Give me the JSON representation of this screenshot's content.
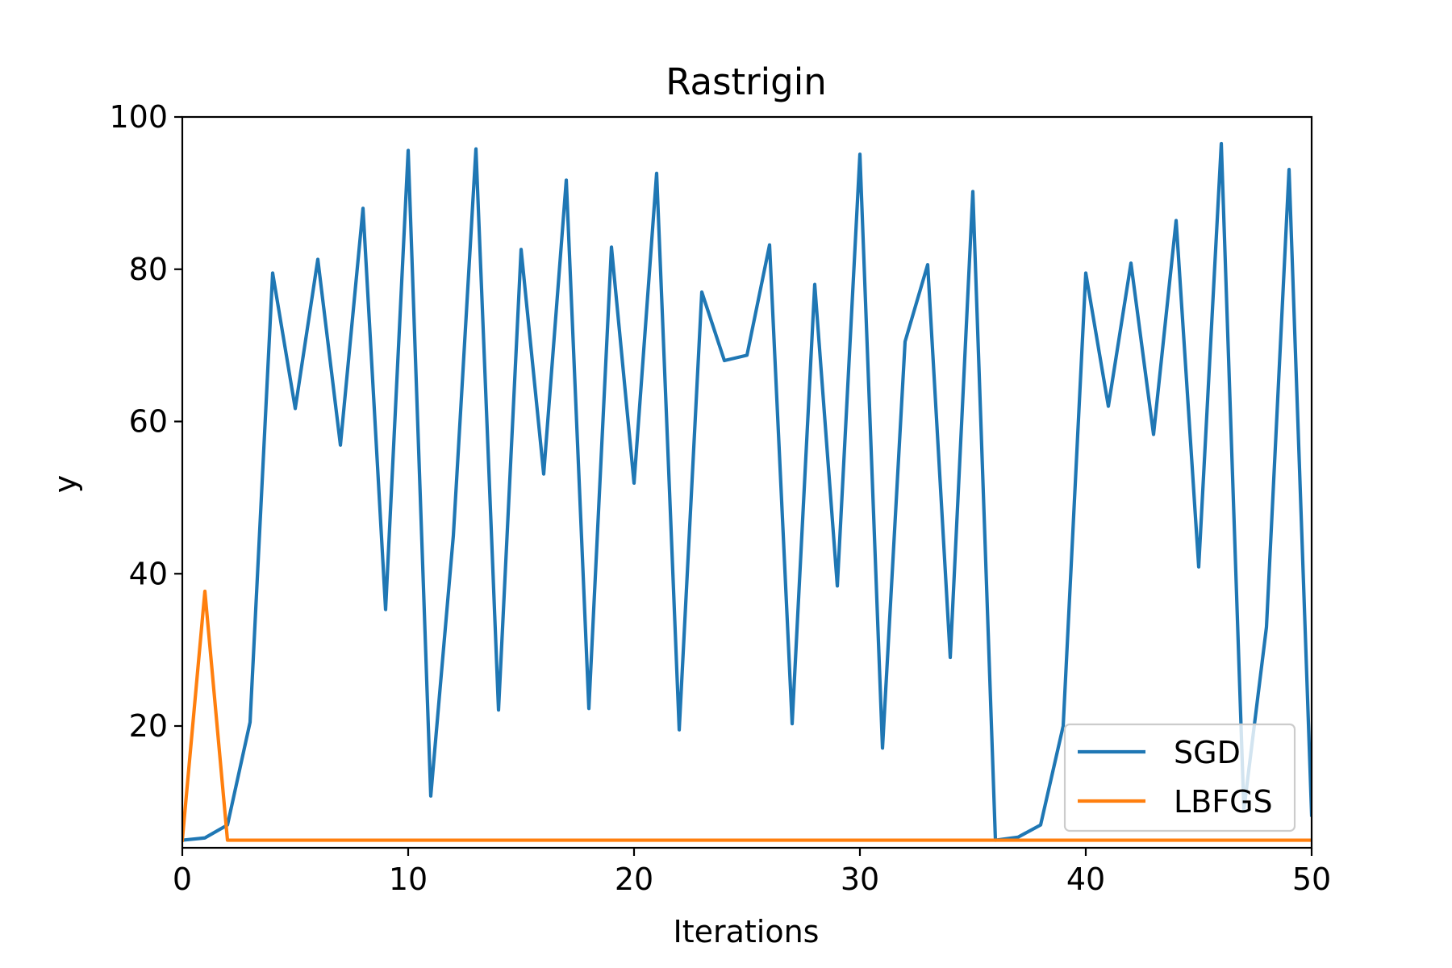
{
  "chart_data": {
    "type": "line",
    "title": "Rastrigin",
    "xlabel": "Iterations",
    "ylabel": "y",
    "xlim": [
      0,
      50
    ],
    "ylim": [
      4,
      100
    ],
    "xticks": [
      0,
      10,
      20,
      30,
      40,
      50
    ],
    "yticks": [
      20,
      40,
      60,
      80,
      100
    ],
    "grid": false,
    "legend_position": "lower-right",
    "x": [
      0,
      1,
      2,
      3,
      4,
      5,
      6,
      7,
      8,
      9,
      10,
      11,
      12,
      13,
      14,
      15,
      16,
      17,
      18,
      19,
      20,
      21,
      22,
      23,
      24,
      25,
      26,
      27,
      28,
      29,
      30,
      31,
      32,
      33,
      34,
      35,
      36,
      37,
      38,
      39,
      40,
      41,
      42,
      43,
      44,
      45,
      46,
      47,
      48,
      49,
      50
    ],
    "series": [
      {
        "name": "SGD",
        "color": "#1f77b4",
        "values": [
          5,
          5.3,
          7,
          20.5,
          79.5,
          61.7,
          81.3,
          56.9,
          88,
          35.3,
          95.6,
          10.8,
          45,
          95.8,
          22.1,
          82.6,
          53.1,
          91.7,
          22.3,
          82.9,
          51.9,
          92.6,
          19.5,
          77,
          68,
          68.7,
          83.2,
          20.3,
          78,
          38.4,
          95.1,
          17.1,
          70.5,
          80.6,
          29,
          90.2,
          5,
          5.4,
          7,
          20,
          79.5,
          62,
          80.8,
          58.3,
          86.4,
          40.9,
          96.5,
          9,
          33,
          93.1,
          8.3
        ]
      },
      {
        "name": "LBFGS",
        "color": "#ff7f0e",
        "values": [
          5,
          37.7,
          5,
          5,
          5,
          5,
          5,
          5,
          5,
          5,
          5,
          5,
          5,
          5,
          5,
          5,
          5,
          5,
          5,
          5,
          5,
          5,
          5,
          5,
          5,
          5,
          5,
          5,
          5,
          5,
          5,
          5,
          5,
          5,
          5,
          5,
          5,
          5,
          5,
          5,
          5,
          5,
          5,
          5,
          5,
          5,
          5,
          5,
          5,
          5,
          5
        ]
      }
    ]
  }
}
